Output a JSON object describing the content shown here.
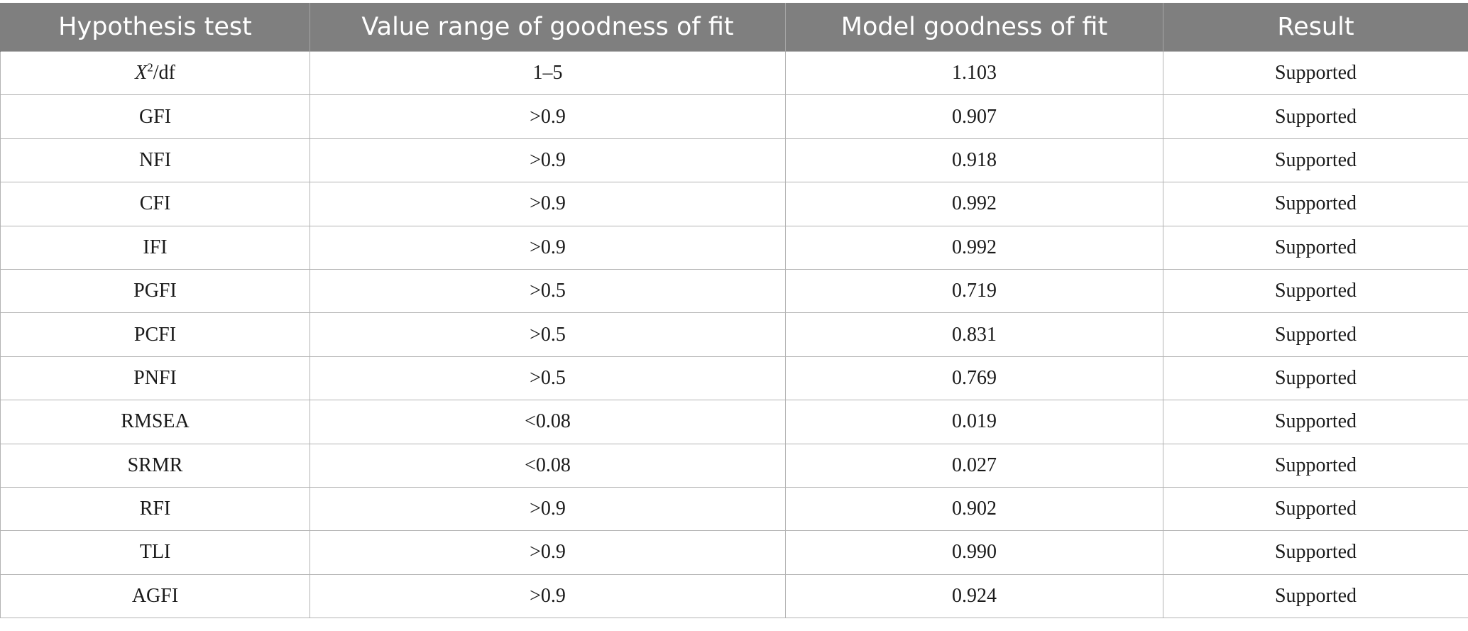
{
  "table": {
    "headers": [
      "Hypothesis test",
      "Value range of goodness of fit",
      "Model goodness of fit",
      "Result"
    ],
    "first_row": {
      "test_var": "X",
      "test_sup": "2",
      "test_rest": "/df",
      "range": "1–5",
      "value": "1.103",
      "result": "Supported"
    },
    "rows": [
      {
        "test": "GFI",
        "range": ">0.9",
        "value": "0.907",
        "result": "Supported"
      },
      {
        "test": "NFI",
        "range": ">0.9",
        "value": "0.918",
        "result": "Supported"
      },
      {
        "test": "CFI",
        "range": ">0.9",
        "value": "0.992",
        "result": "Supported"
      },
      {
        "test": "IFI",
        "range": ">0.9",
        "value": "0.992",
        "result": "Supported"
      },
      {
        "test": "PGFI",
        "range": ">0.5",
        "value": "0.719",
        "result": "Supported"
      },
      {
        "test": "PCFI",
        "range": ">0.5",
        "value": "0.831",
        "result": "Supported"
      },
      {
        "test": "PNFI",
        "range": ">0.5",
        "value": "0.769",
        "result": "Supported"
      },
      {
        "test": "RMSEA",
        "range": "<0.08",
        "value": "0.019",
        "result": "Supported"
      },
      {
        "test": "SRMR",
        "range": "<0.08",
        "value": "0.027",
        "result": "Supported"
      },
      {
        "test": "RFI",
        "range": ">0.9",
        "value": "0.902",
        "result": "Supported"
      },
      {
        "test": "TLI",
        "range": ">0.9",
        "value": "0.990",
        "result": "Supported"
      },
      {
        "test": "AGFI",
        "range": ">0.9",
        "value": "0.924",
        "result": "Supported"
      }
    ]
  },
  "colors": {
    "header_bg": "#7f7f7f",
    "header_text": "#ffffff",
    "border": "#b3b3b3"
  }
}
